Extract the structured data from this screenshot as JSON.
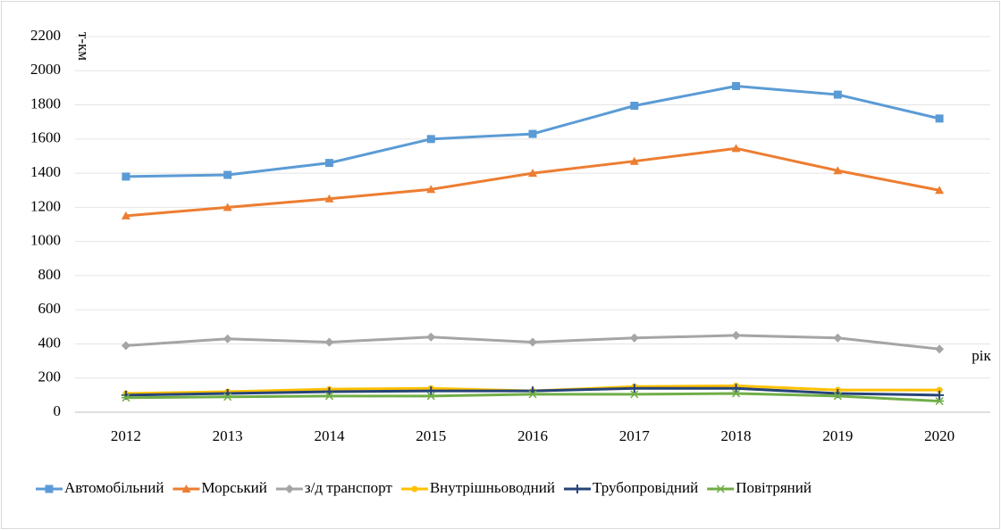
{
  "chart_data": {
    "type": "line",
    "y_label": "т-км",
    "x_label": "рік",
    "categories": [
      "2012",
      "2013",
      "2014",
      "2015",
      "2016",
      "2017",
      "2018",
      "2019",
      "2020"
    ],
    "series": [
      {
        "name": "Автомобільний",
        "color": "#5b9bd5",
        "marker": "square",
        "values": [
          1380,
          1390,
          1460,
          1600,
          1630,
          1795,
          1910,
          1860,
          1720
        ]
      },
      {
        "name": "Морський",
        "color": "#ed7d31",
        "marker": "triangle",
        "values": [
          1150,
          1200,
          1250,
          1305,
          1400,
          1470,
          1545,
          1415,
          1300
        ]
      },
      {
        "name": "з/д транспорт",
        "color": "#a5a5a5",
        "marker": "diamond",
        "values": [
          390,
          430,
          410,
          440,
          410,
          435,
          450,
          435,
          370
        ]
      },
      {
        "name": "Внутрішньоводний",
        "color": "#ffc000",
        "marker": "circle",
        "values": [
          110,
          120,
          135,
          140,
          125,
          150,
          155,
          130,
          130
        ]
      },
      {
        "name": "Трубопровідний",
        "color": "#264478",
        "marker": "plus",
        "values": [
          100,
          110,
          120,
          125,
          125,
          140,
          140,
          110,
          100
        ]
      },
      {
        "name": "Повітряний",
        "color": "#70ad47",
        "marker": "star",
        "values": [
          85,
          90,
          95,
          95,
          105,
          105,
          110,
          95,
          65
        ]
      }
    ],
    "ylim": [
      0,
      2200
    ],
    "yticks": [
      0,
      200,
      400,
      600,
      800,
      1000,
      1200,
      1400,
      1600,
      1800,
      2000,
      2200
    ],
    "grid": true,
    "legend": "bottom"
  }
}
